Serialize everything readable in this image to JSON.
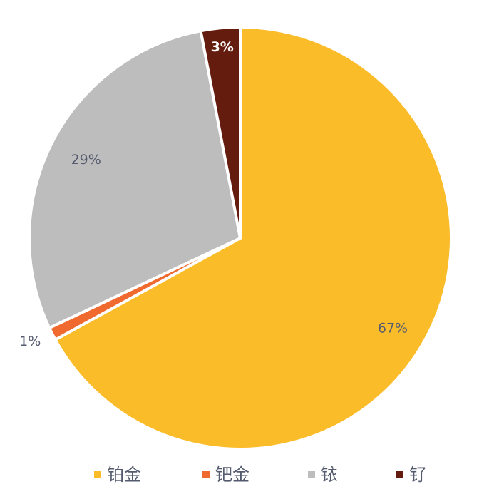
{
  "chart_data": {
    "type": "pie",
    "title": "",
    "slices": [
      {
        "label": "铂金",
        "value": 67,
        "display": "67%",
        "color": "#fbbc2a"
      },
      {
        "label": "钯金",
        "value": 1,
        "display": "1%",
        "color": "#f0692f"
      },
      {
        "label": "铱",
        "value": 29,
        "display": "29%",
        "color": "#bdbdbd"
      },
      {
        "label": "钌",
        "value": 3,
        "display": "3%",
        "color": "#641c0f"
      }
    ],
    "start": "12 o'clock",
    "direction": "clockwise",
    "legend_position": "bottom",
    "label_color": "#555b6e",
    "dark_slice_label_color": "#ffffff"
  }
}
